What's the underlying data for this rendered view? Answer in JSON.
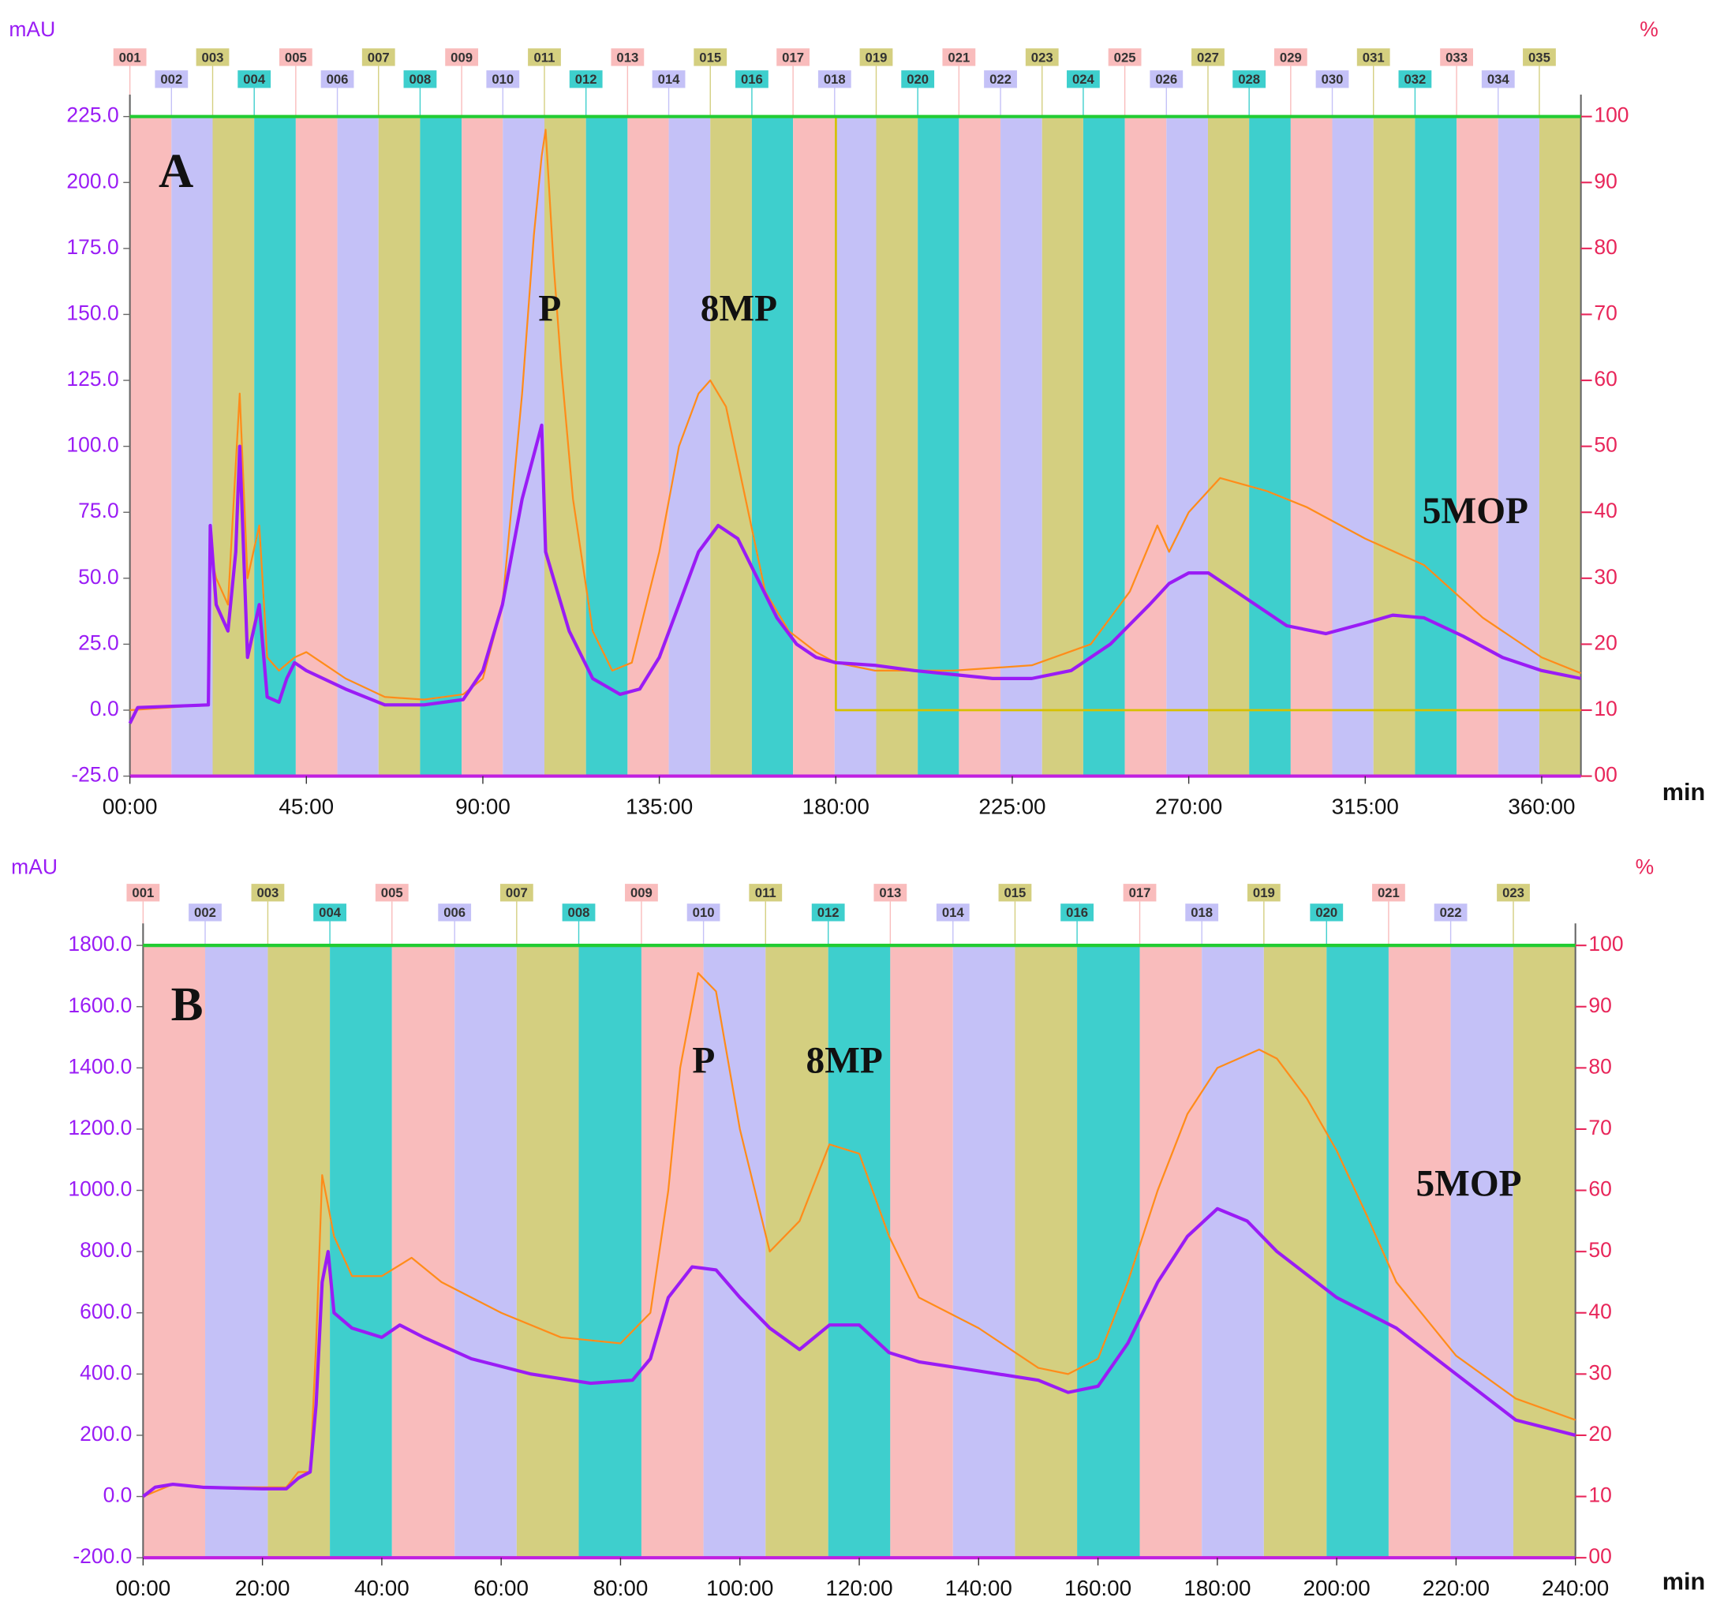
{
  "chart_data": [
    {
      "type": "line",
      "annotations": [
        "A",
        "P",
        "8MP",
        "5MOP"
      ],
      "ylabel": "mAU",
      "y2label": "%",
      "xlabel": "min",
      "xlim": [
        0,
        370
      ],
      "xticks": [
        {
          "value": 0,
          "label": "00:00"
        },
        {
          "value": 45,
          "label": "45:00"
        },
        {
          "value": 90,
          "label": "90:00"
        },
        {
          "value": 135,
          "label": "135:00"
        },
        {
          "value": 180,
          "label": "180:00"
        },
        {
          "value": 225,
          "label": "225:00"
        },
        {
          "value": 270,
          "label": "270:00"
        },
        {
          "value": 315,
          "label": "315:00"
        },
        {
          "value": 360,
          "label": "360:00"
        }
      ],
      "ylim": [
        -25,
        225
      ],
      "yticks": [
        {
          "value": 225,
          "label": "225.0"
        },
        {
          "value": 200,
          "label": "200.0"
        },
        {
          "value": 175,
          "label": "175.0"
        },
        {
          "value": 150,
          "label": "150.0"
        },
        {
          "value": 125,
          "label": "125.0"
        },
        {
          "value": 100,
          "label": "100.0"
        },
        {
          "value": 75,
          "label": "75.0"
        },
        {
          "value": 50,
          "label": "50.0"
        },
        {
          "value": 25,
          "label": "25.0"
        },
        {
          "value": 0,
          "label": "0.0"
        },
        {
          "value": -25,
          "label": "-25.0"
        }
      ],
      "y2lim": [
        0,
        100
      ],
      "y2ticks": [
        100,
        90,
        80,
        70,
        60,
        50,
        40,
        30,
        20,
        10,
        {
          "value": 0,
          "label": "00"
        }
      ],
      "fraction_colors": [
        "#f9bcbc",
        "#c4c1f7",
        "#d4cf80",
        "#3ecfcd"
      ],
      "fraction_labels": [
        "001",
        "002",
        "003",
        "004",
        "005",
        "006",
        "007",
        "008",
        "009",
        "010",
        "011",
        "012",
        "013",
        "014",
        "015",
        "016",
        "017",
        "018",
        "019",
        "020",
        "021",
        "022",
        "023",
        "024",
        "025",
        "026",
        "027",
        "028",
        "029",
        "030",
        "031",
        "032",
        "033",
        "034",
        "035"
      ],
      "fraction_edges": [
        0,
        10.6,
        21.1,
        31.7,
        42.3,
        52.9,
        63.4,
        74,
        84.6,
        95.1,
        105.7,
        116.3,
        126.9,
        137.4,
        148,
        158.6,
        169.1,
        179.7,
        190.3,
        200.9,
        211.4,
        222,
        232.6,
        243.1,
        253.7,
        264.3,
        274.9,
        285.4,
        296,
        306.6,
        317.1,
        327.7,
        338.3,
        348.9,
        359.4,
        370
      ],
      "series": [
        {
          "color": "#ff8c1a",
          "x": [
            0,
            20,
            20.5,
            22,
            25,
            28,
            30,
            33,
            35,
            38,
            42,
            45,
            55,
            65,
            75,
            85,
            90,
            95,
            100,
            103,
            105,
            106,
            108,
            110,
            113,
            118,
            123,
            128,
            135,
            140,
            145,
            148,
            152,
            157,
            162,
            168,
            175,
            180,
            190,
            210,
            230,
            245,
            255,
            262,
            265,
            270,
            278,
            290,
            300,
            315,
            330,
            345,
            360,
            370
          ],
          "values": [
            0,
            2,
            60,
            50,
            40,
            120,
            50,
            70,
            20,
            15,
            20,
            22,
            12,
            5,
            4,
            6,
            12,
            40,
            120,
            180,
            210,
            220,
            170,
            130,
            80,
            30,
            15,
            18,
            60,
            100,
            120,
            125,
            115,
            80,
            45,
            30,
            22,
            18,
            15,
            15,
            17,
            25,
            45,
            70,
            60,
            75,
            88,
            83,
            77,
            65,
            55,
            35,
            20,
            14
          ]
        },
        {
          "color": "#9a1cf5",
          "x": [
            0,
            2,
            20,
            20.5,
            22,
            25,
            27,
            28,
            30,
            33,
            35,
            38,
            40,
            42,
            45,
            55,
            65,
            75,
            85,
            90,
            95,
            100,
            105,
            106,
            108,
            112,
            118,
            125,
            130,
            135,
            140,
            145,
            150,
            155,
            160,
            165,
            170,
            175,
            180,
            190,
            200,
            220,
            230,
            240,
            250,
            260,
            265,
            270,
            275,
            285,
            295,
            305,
            315,
            322,
            330,
            340,
            350,
            360,
            370
          ],
          "values": [
            -5,
            1,
            2,
            70,
            40,
            30,
            60,
            100,
            20,
            40,
            5,
            3,
            12,
            18,
            15,
            8,
            2,
            2,
            4,
            15,
            40,
            80,
            108,
            60,
            50,
            30,
            12,
            6,
            8,
            20,
            40,
            60,
            70,
            65,
            50,
            35,
            25,
            20,
            18,
            17,
            15,
            12,
            12,
            15,
            25,
            40,
            48,
            52,
            52,
            42,
            32,
            29,
            33,
            36,
            35,
            28,
            20,
            15,
            12
          ]
        },
        {
          "color": "#d6c000",
          "axis": "y2",
          "x": [
            0,
            180,
            180,
            370
          ],
          "values": [
            100,
            100,
            10,
            10
          ]
        },
        {
          "color": "#22cc33",
          "axis": "y2",
          "x": [
            0,
            370
          ],
          "values": [
            100,
            100
          ]
        }
      ]
    },
    {
      "type": "line",
      "annotations": [
        "B",
        "P",
        "8MP",
        "5MOP"
      ],
      "ylabel": "mAU",
      "y2label": "%",
      "xlabel": "min",
      "xlim": [
        0,
        240
      ],
      "xticks": [
        {
          "value": 0,
          "label": "00:00"
        },
        {
          "value": 20,
          "label": "20:00"
        },
        {
          "value": 40,
          "label": "40:00"
        },
        {
          "value": 60,
          "label": "60:00"
        },
        {
          "value": 80,
          "label": "80:00"
        },
        {
          "value": 100,
          "label": "100:00"
        },
        {
          "value": 120,
          "label": "120:00"
        },
        {
          "value": 140,
          "label": "140:00"
        },
        {
          "value": 160,
          "label": "160:00"
        },
        {
          "value": 180,
          "label": "180:00"
        },
        {
          "value": 200,
          "label": "200:00"
        },
        {
          "value": 220,
          "label": "220:00"
        },
        {
          "value": 240,
          "label": "240:00"
        }
      ],
      "ylim": [
        -200,
        1800
      ],
      "yticks": [
        {
          "value": 1800,
          "label": "1800.0"
        },
        {
          "value": 1600,
          "label": "1600.0"
        },
        {
          "value": 1400,
          "label": "1400.0"
        },
        {
          "value": 1200,
          "label": "1200.0"
        },
        {
          "value": 1000,
          "label": "1000.0"
        },
        {
          "value": 800,
          "label": "800.0"
        },
        {
          "value": 600,
          "label": "600.0"
        },
        {
          "value": 400,
          "label": "400.0"
        },
        {
          "value": 200,
          "label": "200.0"
        },
        {
          "value": 0,
          "label": "0.0"
        },
        {
          "value": -200,
          "label": "-200.0"
        }
      ],
      "y2lim": [
        0,
        100
      ],
      "y2ticks": [
        100,
        90,
        80,
        70,
        60,
        50,
        40,
        30,
        20,
        10,
        {
          "value": 0,
          "label": "00"
        }
      ],
      "fraction_colors": [
        "#f9bcbc",
        "#c4c1f7",
        "#d4cf80",
        "#3ecfcd"
      ],
      "fraction_labels": [
        "001",
        "002",
        "003",
        "004",
        "005",
        "006",
        "007",
        "008",
        "009",
        "010",
        "011",
        "012",
        "013",
        "014",
        "015",
        "016",
        "017",
        "018",
        "019",
        "020",
        "021",
        "022",
        "023"
      ],
      "fraction_edges": [
        0,
        10.4,
        20.9,
        31.3,
        41.7,
        52.2,
        62.6,
        73,
        83.5,
        93.9,
        104.3,
        114.8,
        125.2,
        135.7,
        146.1,
        156.5,
        167,
        177.4,
        187.8,
        198.3,
        208.7,
        219.1,
        229.6,
        240
      ],
      "series": [
        {
          "color": "#ff8c1a",
          "x": [
            0,
            5,
            10,
            24,
            26,
            28,
            29,
            30,
            32,
            35,
            40,
            45,
            50,
            60,
            70,
            80,
            85,
            88,
            90,
            93,
            96,
            100,
            105,
            110,
            115,
            120,
            125,
            130,
            140,
            150,
            155,
            160,
            165,
            170,
            175,
            180,
            187,
            190,
            195,
            200,
            205,
            210,
            215,
            220,
            230,
            240
          ],
          "values": [
            0,
            40,
            30,
            30,
            80,
            80,
            500,
            1050,
            850,
            720,
            720,
            780,
            700,
            600,
            520,
            500,
            600,
            1000,
            1400,
            1710,
            1650,
            1200,
            800,
            900,
            1150,
            1120,
            850,
            650,
            550,
            420,
            400,
            450,
            700,
            1000,
            1250,
            1400,
            1460,
            1430,
            1300,
            1130,
            920,
            700,
            580,
            460,
            320,
            250
          ]
        },
        {
          "color": "#9a1cf5",
          "x": [
            0,
            2,
            5,
            10,
            20,
            24,
            26,
            28,
            29,
            30,
            31,
            32,
            35,
            40,
            43,
            47,
            55,
            65,
            75,
            82,
            85,
            88,
            92,
            96,
            100,
            105,
            110,
            115,
            120,
            125,
            130,
            140,
            150,
            155,
            160,
            165,
            170,
            175,
            180,
            185,
            190,
            200,
            210,
            220,
            230,
            240
          ],
          "values": [
            0,
            30,
            40,
            30,
            25,
            25,
            60,
            80,
            300,
            700,
            800,
            600,
            550,
            520,
            560,
            520,
            450,
            400,
            370,
            380,
            450,
            650,
            750,
            740,
            650,
            550,
            480,
            560,
            560,
            470,
            440,
            410,
            380,
            340,
            360,
            500,
            700,
            850,
            940,
            900,
            800,
            650,
            550,
            400,
            250,
            200
          ]
        },
        {
          "color": "#d6c000",
          "axis": "y2",
          "x": [
            0,
            240
          ],
          "values": [
            100,
            100
          ]
        },
        {
          "color": "#22cc33",
          "axis": "y2",
          "x": [
            0,
            240
          ],
          "values": [
            100,
            100
          ]
        }
      ]
    }
  ]
}
